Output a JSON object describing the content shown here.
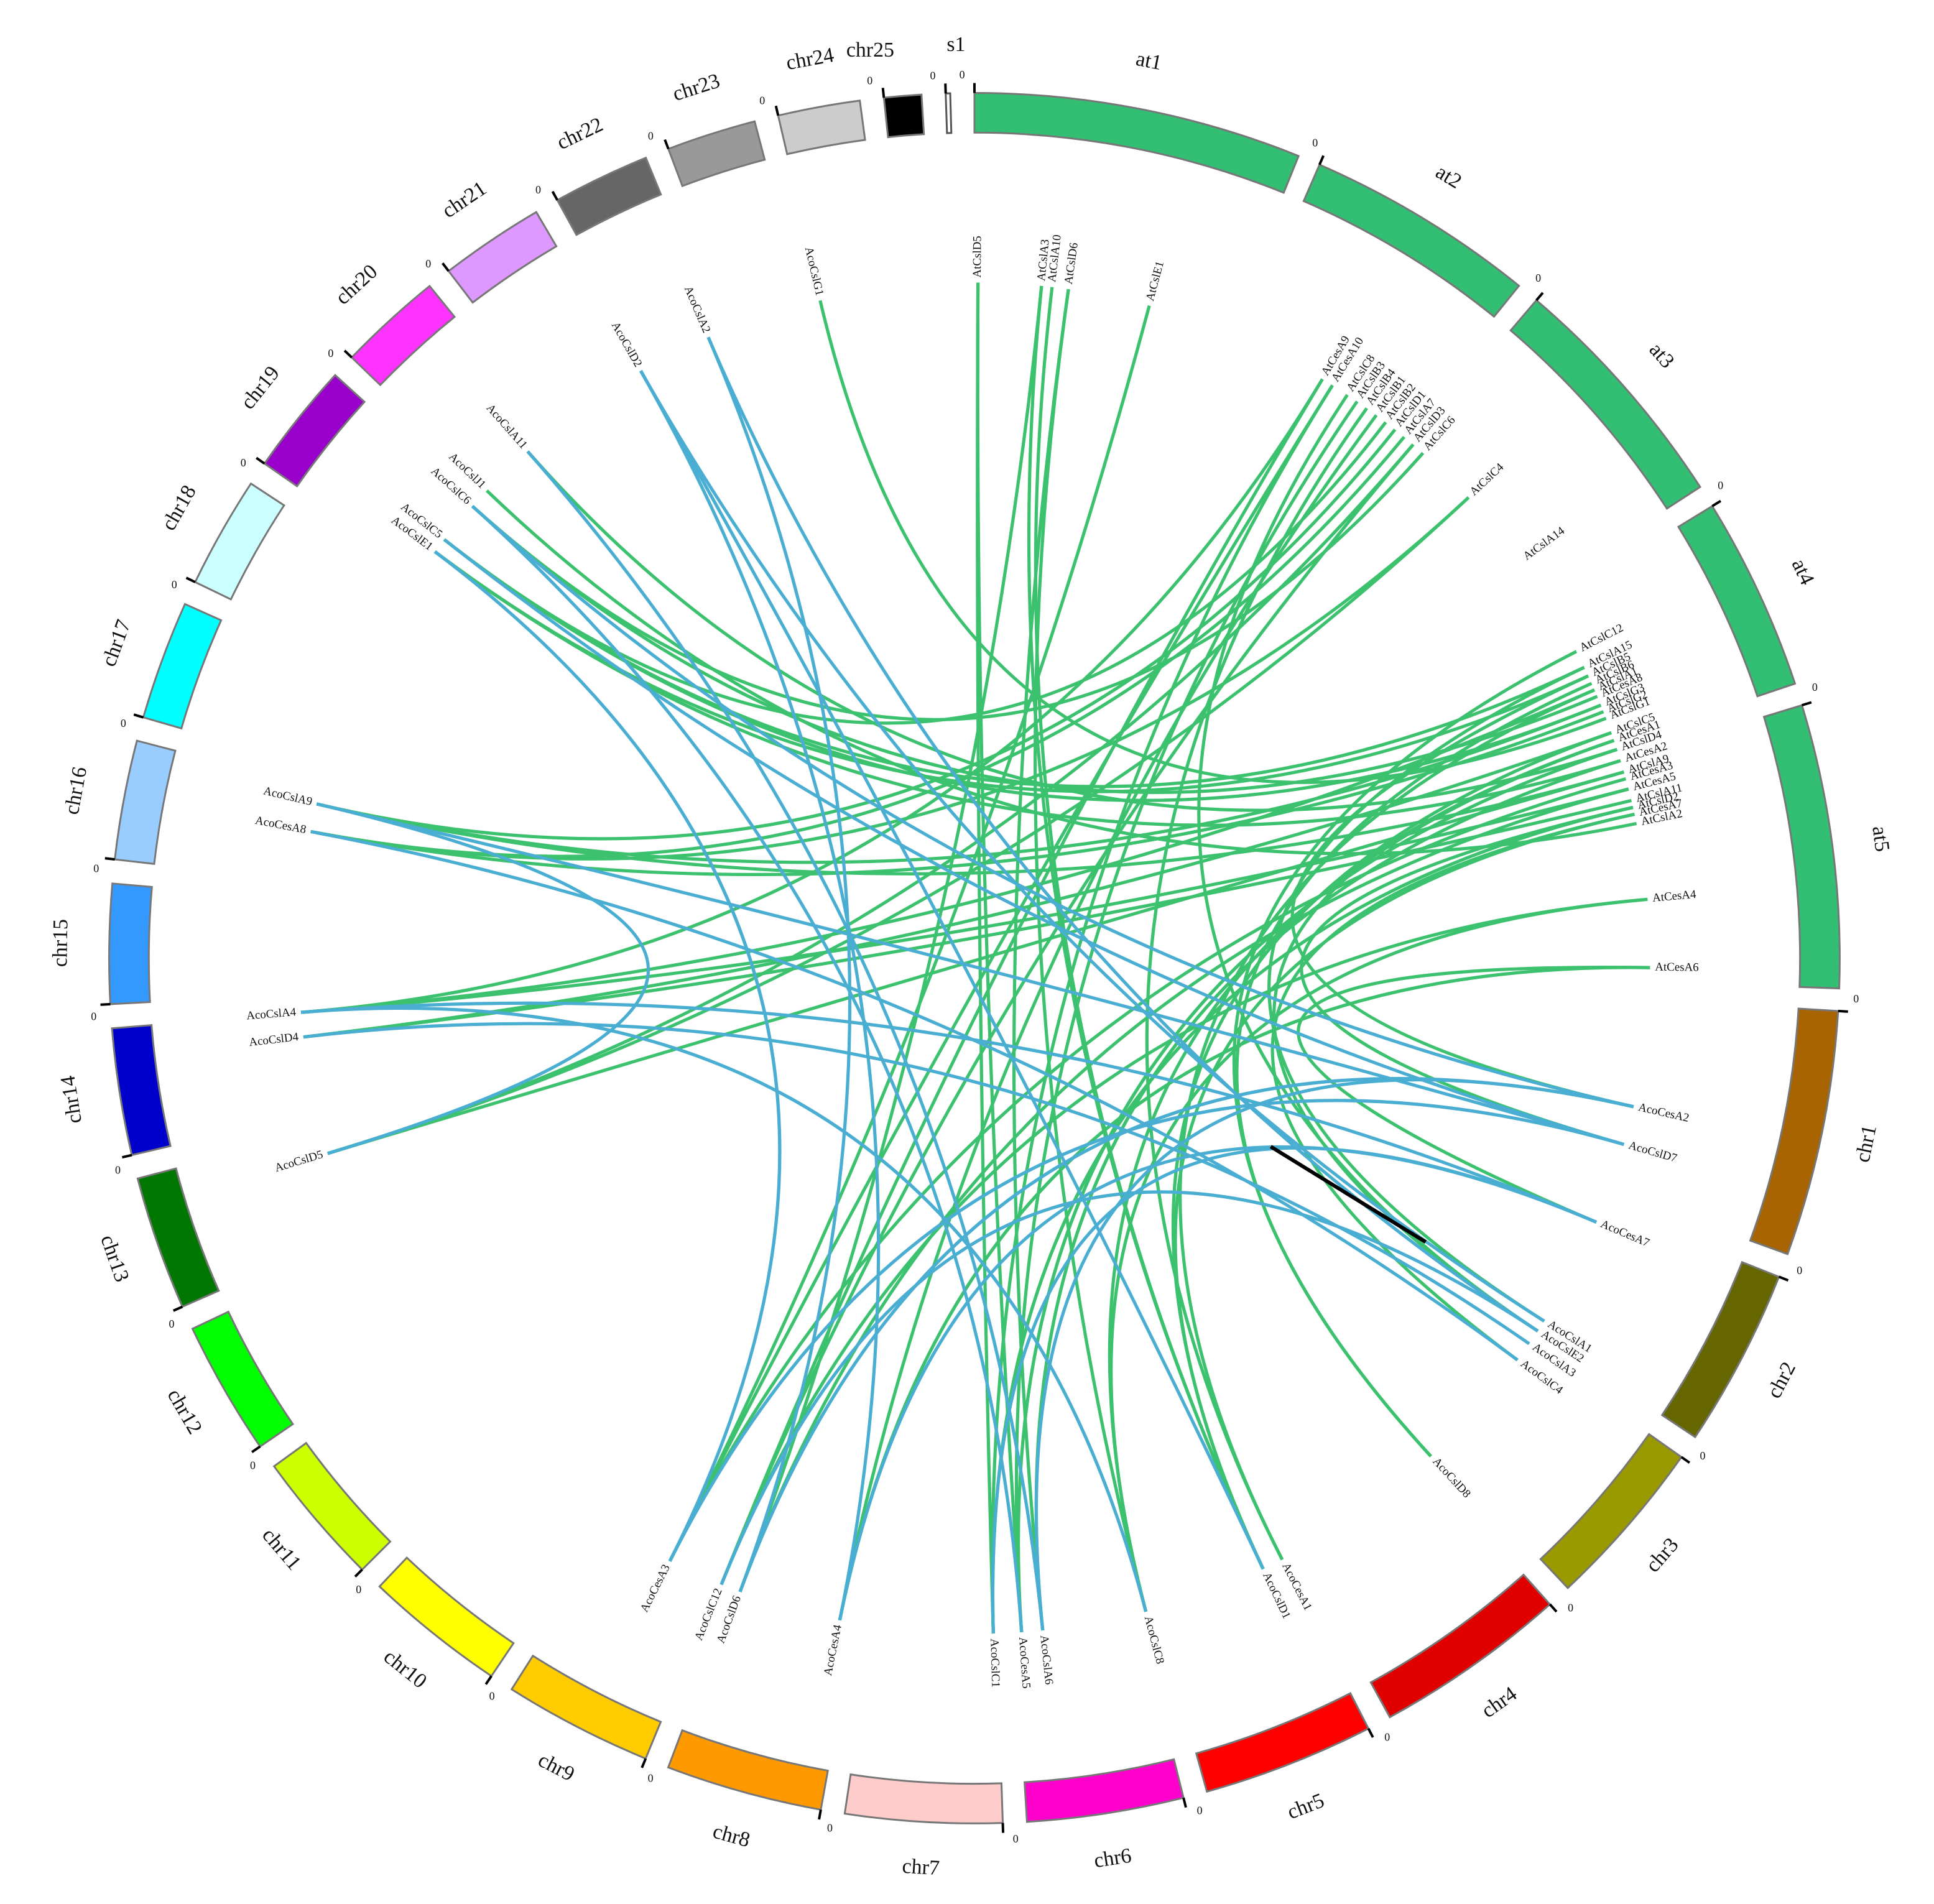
{
  "segments": [
    {
      "label": "at1",
      "color": "#32bf74"
    },
    {
      "label": "at2",
      "color": "#32bf74"
    },
    {
      "label": "at3",
      "color": "#32bf74"
    },
    {
      "label": "at4",
      "color": "#32bf74"
    },
    {
      "label": "at5",
      "color": "#32bf74"
    },
    {
      "label": "chr1",
      "color": "#a86400"
    },
    {
      "label": "chr2",
      "color": "#666600"
    },
    {
      "label": "chr3",
      "color": "#999900"
    },
    {
      "label": "chr4",
      "color": "#e00000"
    },
    {
      "label": "chr5",
      "color": "#ff0000"
    },
    {
      "label": "chr6",
      "color": "#ff00cc"
    },
    {
      "label": "chr7",
      "color": "#ffcccc"
    },
    {
      "label": "chr8",
      "color": "#ff9900"
    },
    {
      "label": "chr9",
      "color": "#ffcc00"
    },
    {
      "label": "chr10",
      "color": "#ffff00"
    },
    {
      "label": "chr11",
      "color": "#ccff00"
    },
    {
      "label": "chr12",
      "color": "#00ff00"
    },
    {
      "label": "chr13",
      "color": "#007700"
    },
    {
      "label": "chr14",
      "color": "#0000cc"
    },
    {
      "label": "chr15",
      "color": "#3399ff"
    },
    {
      "label": "chr16",
      "color": "#99ccff"
    },
    {
      "label": "chr17",
      "color": "#00ffff"
    },
    {
      "label": "chr18",
      "color": "#ccffff"
    },
    {
      "label": "chr19",
      "color": "#9900cc"
    },
    {
      "label": "chr20",
      "color": "#ff33ff"
    },
    {
      "label": "chr21",
      "color": "#dd99ff"
    },
    {
      "label": "chr22",
      "color": "#666666"
    },
    {
      "label": "chr23",
      "color": "#999999"
    },
    {
      "label": "chr24",
      "color": "#cccccc"
    },
    {
      "label": "chr25",
      "color": "#000000"
    },
    {
      "label": "s1",
      "color": "#ffffff"
    }
  ],
  "start_tick": "0",
  "genes": [
    "AtCslD5",
    "AtCslA3",
    "AtCslA10",
    "AtCslD6",
    "AtCslE1",
    "AtCesA9",
    "AtCesA10",
    "AtCslC8",
    "AtCslB3",
    "AtCslB4",
    "AtCslB1",
    "AtCslB2",
    "AtCslD1",
    "AtCslA7",
    "AtCslD3",
    "AtCslC6",
    "AtCslC4",
    "AtCslA14",
    "AtCslC12",
    "AtCslA15",
    "AtCslB5",
    "AtCslB6",
    "AtCslA1",
    "AtCesA8",
    "AtCslG3",
    "AtCslG2",
    "AtCslG1",
    "AtCslC5",
    "AtCesA1",
    "AtCslD4",
    "AtCesA2",
    "AtCslA9",
    "AtCesA3",
    "AtCesA5",
    "AtCslA11",
    "AtCslD2",
    "AtCesA7",
    "AtCslA2",
    "AtCesA4",
    "AtCesA6",
    "AcoCesA2",
    "AcoCslD7",
    "AcoCesA7",
    "AcoCslA1",
    "AcoCslE2",
    "AcoCslA3",
    "AcoCslC4",
    "AcoCslD8",
    "AcoCesA1",
    "AcoCslD1",
    "AcoCslC8",
    "AcoCslA6",
    "AcoCesA5",
    "AcoCslC1",
    "AcoCesA4",
    "AcoCslD6",
    "AcoCslC12",
    "AcoCesA3",
    "AcoCslD5",
    "AcoCslD4",
    "AcoCslA4",
    "AcoCesA8",
    "AcoCslA9",
    "AcoCslE1",
    "AcoCslC5",
    "AcoCslC6",
    "AcoCslA11",
    "AcoCslJ1",
    "AcoCslD2",
    "AcoCslA2",
    "AcoCslG1"
  ]
}
